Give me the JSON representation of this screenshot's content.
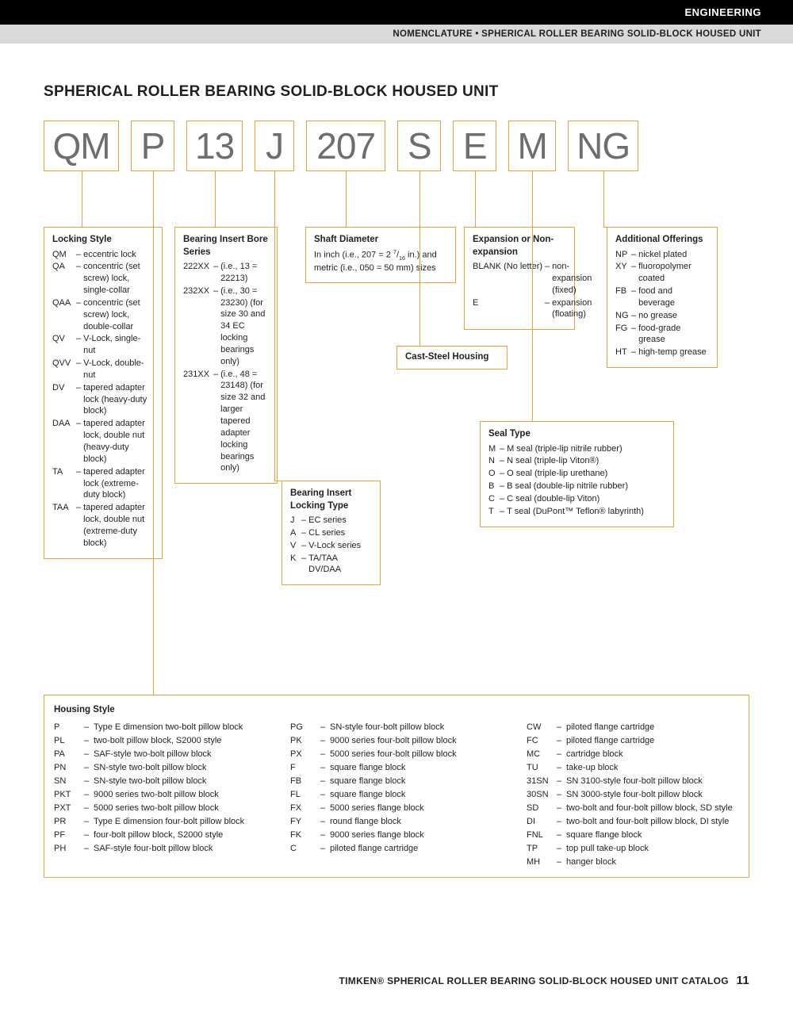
{
  "header": {
    "category": "ENGINEERING",
    "subcategory": "NOMENCLATURE • SPHERICAL ROLLER BEARING SOLID-BLOCK HOUSED UNIT"
  },
  "title": "SPHERICAL ROLLER BEARING SOLID-BLOCK HOUSED UNIT",
  "codes": [
    "QM",
    "P",
    "13",
    "J",
    "207",
    "S",
    "E",
    "M",
    "NG"
  ],
  "locking_style": {
    "title": "Locking Style",
    "rows": [
      [
        "QM",
        "eccentric lock"
      ],
      [
        "QA",
        "concentric (set screw) lock, single-collar"
      ],
      [
        "QAA",
        "concentric (set screw) lock, double-collar"
      ],
      [
        "QV",
        "V-Lock, single-nut"
      ],
      [
        "QVV",
        "V-Lock, double-nut"
      ],
      [
        "DV",
        "tapered adapter lock (heavy-duty block)"
      ],
      [
        "DAA",
        "tapered adapter lock, double nut (heavy-duty block)"
      ],
      [
        "TA",
        "tapered adapter lock (extreme-duty block)"
      ],
      [
        "TAA",
        "tapered adapter lock, double nut (extreme-duty block)"
      ]
    ]
  },
  "bore_series": {
    "title": "Bearing Insert Bore Series",
    "rows": [
      [
        "222XX",
        "(i.e., 13 = 22213)"
      ],
      [
        "232XX",
        "(i.e., 30 = 23230) (for size 30 and 34 EC locking bearings only)"
      ],
      [
        "231XX",
        "(i.e., 48 = 23148) (for size 32 and larger tapered adapter locking bearings only)"
      ]
    ]
  },
  "locking_type": {
    "title": "Bearing Insert Locking Type",
    "rows": [
      [
        "J",
        "EC series"
      ],
      [
        "A",
        "CL series"
      ],
      [
        "V",
        "V-Lock series"
      ],
      [
        "K",
        "TA/TAA DV/DAA"
      ]
    ]
  },
  "shaft_diameter": {
    "title": "Shaft Diameter",
    "text": "In inch (i.e., 207 = 2 7/16 in.) and metric (i.e., 050 = 50 mm) sizes"
  },
  "cast_steel": {
    "title": "Cast-Steel Housing"
  },
  "expansion": {
    "title": "Expansion or Non-expansion",
    "rows": [
      [
        "BLANK (No letter)",
        "non-expansion (fixed)"
      ],
      [
        "E",
        "expansion (floating)"
      ]
    ]
  },
  "seal_type": {
    "title": "Seal Type",
    "rows": [
      [
        "M",
        "M seal (triple-lip nitrile rubber)"
      ],
      [
        "N",
        "N seal (triple-lip Viton®)"
      ],
      [
        "O",
        "O seal (triple-lip urethane)"
      ],
      [
        "B",
        "B seal (double-lip nitrile rubber)"
      ],
      [
        "C",
        "C seal (double-lip Viton)"
      ],
      [
        "T",
        "T seal (DuPont™ Teflon® labyrinth)"
      ]
    ]
  },
  "additional": {
    "title": "Additional Offerings",
    "rows": [
      [
        "NP",
        "nickel plated"
      ],
      [
        "XY",
        "fluoropolymer coated"
      ],
      [
        "FB",
        "food and beverage"
      ],
      [
        "NG",
        "no grease"
      ],
      [
        "FG",
        "food-grade grease"
      ],
      [
        "HT",
        "high-temp grease"
      ]
    ]
  },
  "housing_style": {
    "title": "Housing Style",
    "cols": [
      [
        [
          "P",
          "Type E dimension two-bolt pillow block"
        ],
        [
          "PL",
          "two-bolt pillow block, S2000 style"
        ],
        [
          "PA",
          "SAF-style two-bolt pillow block"
        ],
        [
          "PN",
          "SN-style two-bolt pillow block"
        ],
        [
          "SN",
          "SN-style two-bolt pillow block"
        ],
        [
          "PKT",
          "9000 series two-bolt pillow block"
        ],
        [
          "PXT",
          "5000 series two-bolt pillow block"
        ],
        [
          "PR",
          "Type E dimension four-bolt pillow block"
        ],
        [
          "PF",
          "four-bolt pillow block, S2000 style"
        ],
        [
          "PH",
          "SAF-style four-bolt pillow block"
        ]
      ],
      [
        [
          "PG",
          "SN-style four-bolt pillow block"
        ],
        [
          "PK",
          "9000 series four-bolt pillow block"
        ],
        [
          "PX",
          "5000 series four-bolt pillow block"
        ],
        [
          "F",
          "square flange block"
        ],
        [
          "FB",
          "square flange block"
        ],
        [
          "FL",
          "square flange block"
        ],
        [
          "FX",
          "5000 series flange block"
        ],
        [
          "FY",
          "round flange block"
        ],
        [
          "FK",
          "9000 series flange block"
        ],
        [
          "C",
          "piloted flange cartridge"
        ]
      ],
      [
        [
          "CW",
          "piloted flange cartridge"
        ],
        [
          "FC",
          "piloted flange cartridge"
        ],
        [
          "MC",
          "cartridge block"
        ],
        [
          "TU",
          "take-up block"
        ],
        [
          "31SN",
          "SN 3100-style four-bolt pillow block"
        ],
        [
          "30SN",
          "SN 3000-style four-bolt pillow block"
        ],
        [
          "SD",
          "two-bolt and four-bolt pillow block, SD style"
        ],
        [
          "DI",
          "two-bolt and four-bolt pillow block, DI style"
        ],
        [
          "FNL",
          "square flange block"
        ],
        [
          "TP",
          "top pull take-up block"
        ],
        [
          "MH",
          "hanger block"
        ]
      ]
    ]
  },
  "footer": {
    "text": "TIMKEN® SPHERICAL ROLLER BEARING SOLID-BLOCK HOUSED UNIT CATALOG",
    "page": "11"
  },
  "colors": {
    "border": "#e8a33d",
    "text": "#231f20",
    "code_text": "#6d6e71"
  }
}
